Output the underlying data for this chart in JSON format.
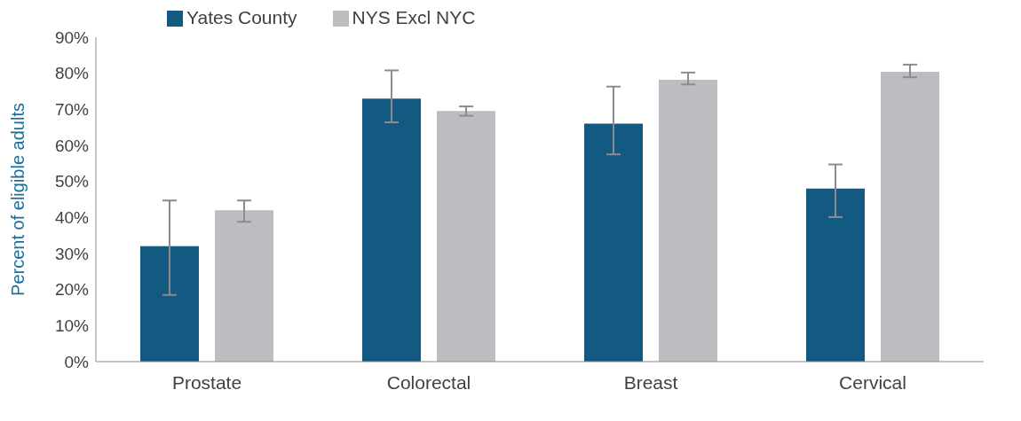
{
  "chart_data": {
    "type": "bar",
    "ylabel": "Percent of eligible adults",
    "categories": [
      "Prostate",
      "Colorectal",
      "Breast",
      "Cervical"
    ],
    "series": [
      {
        "name": "Yates County",
        "color": "#135a82",
        "values": [
          32,
          73,
          66,
          48
        ],
        "errors": [
          [
            18.5,
            44.7
          ],
          [
            66.4,
            80.8
          ],
          [
            57.5,
            76.3
          ],
          [
            40.1,
            54.7
          ]
        ]
      },
      {
        "name": "NYS Excl NYC",
        "color": "#bcbdc0",
        "values": [
          42,
          69.5,
          78.2,
          80.4
        ],
        "errors": [
          [
            38.8,
            44.7
          ],
          [
            68.2,
            70.8
          ],
          [
            76.9,
            80.2
          ],
          [
            78.9,
            82.4
          ]
        ]
      }
    ],
    "ylim": [
      0,
      90
    ],
    "yticks": [
      {
        "value": 0,
        "label": "0%"
      },
      {
        "value": 10,
        "label": "10%"
      },
      {
        "value": 20,
        "label": "20%"
      },
      {
        "value": 30,
        "label": "30%"
      },
      {
        "value": 40,
        "label": "40%"
      },
      {
        "value": 50,
        "label": "50%"
      },
      {
        "value": 60,
        "label": "60%"
      },
      {
        "value": 70,
        "label": "70%"
      },
      {
        "value": 80,
        "label": "80%"
      },
      {
        "value": 90,
        "label": "90%"
      }
    ],
    "grid": false,
    "legend": "top left"
  }
}
